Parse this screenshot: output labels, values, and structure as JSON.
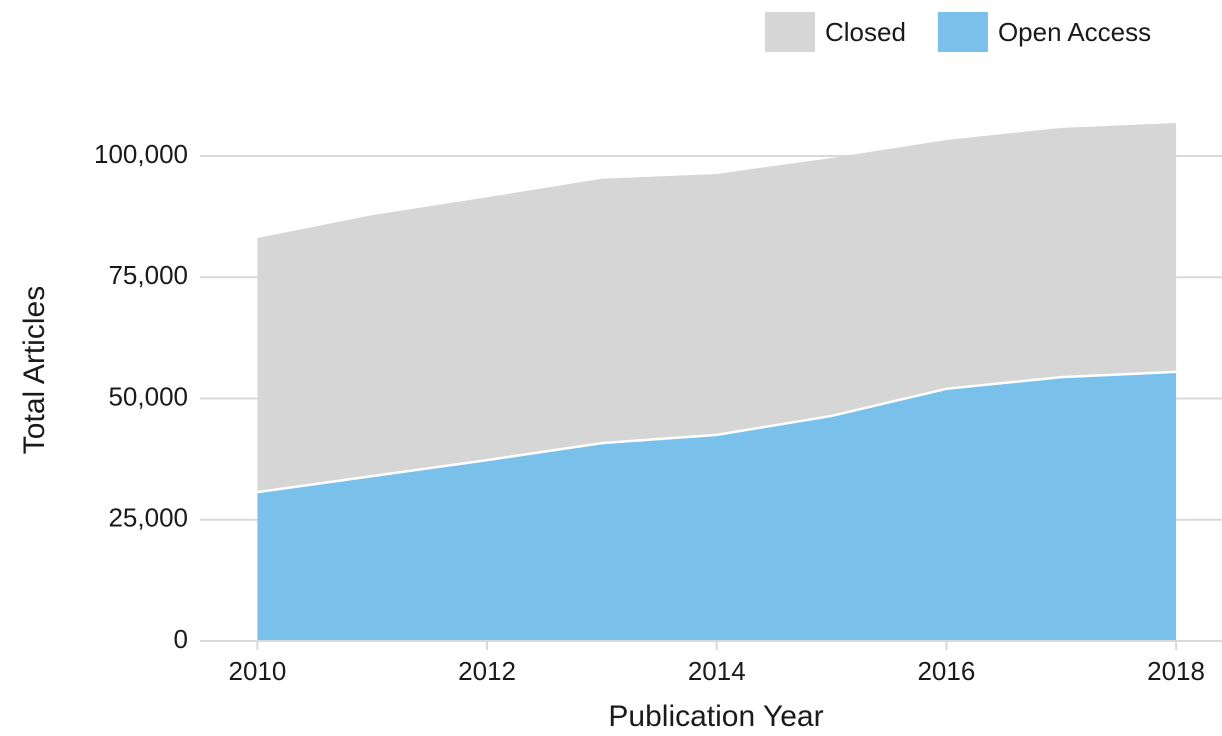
{
  "chart_data": {
    "type": "stacked_area",
    "x_label": "Publication Year",
    "y_label": "Total Articles",
    "x": [
      2010,
      2011,
      2012,
      2013,
      2014,
      2015,
      2016,
      2017,
      2018
    ],
    "series": [
      {
        "name": "Closed",
        "color": "#d6d6d6",
        "values": [
          52400,
          53800,
          54200,
          54500,
          53800,
          53200,
          51300,
          51400,
          51300
        ]
      },
      {
        "name": "Open Access",
        "color": "#79c0eb",
        "values": [
          30700,
          34000,
          37300,
          40800,
          42500,
          46400,
          52000,
          54400,
          55500
        ]
      }
    ],
    "xlim": [
      2009.5,
      2018.4
    ],
    "xticks": [
      2010,
      2012,
      2014,
      2016,
      2018
    ],
    "ylim": [
      0,
      110000
    ],
    "yticks": [
      0,
      {
        "value": 25000,
        "label": "25,000"
      },
      {
        "value": 50000,
        "label": "50,000"
      },
      {
        "value": 75000,
        "label": "75,000"
      },
      {
        "value": 100000,
        "label": "100,000"
      }
    ],
    "grid": true,
    "legend": "top-right"
  }
}
